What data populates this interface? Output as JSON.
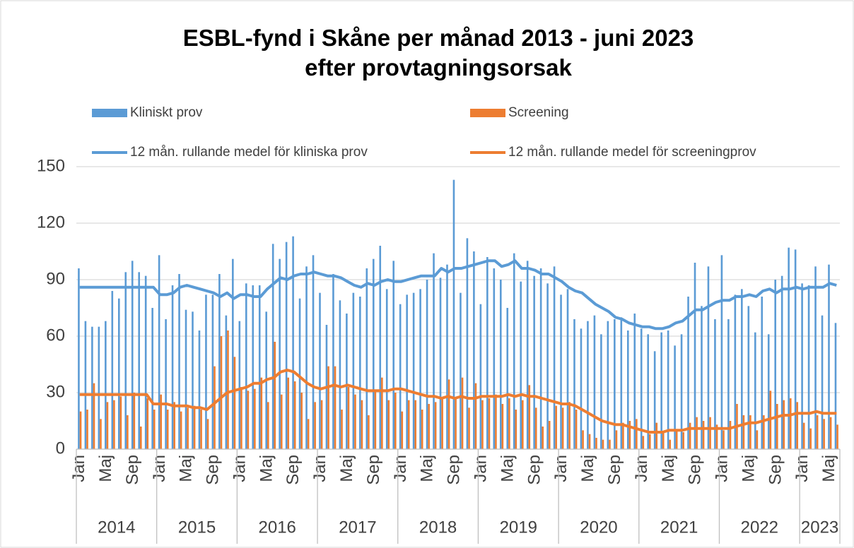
{
  "chart_data": {
    "type": "bar_line",
    "title": "ESBL-fynd i Skåne per månad 2013 - juni 2023 efter provtagningsorsak",
    "categories": [
      "Jan",
      null,
      null,
      null,
      "Maj",
      null,
      null,
      null,
      "Sep",
      null,
      null,
      null,
      "Jan",
      null,
      null,
      null,
      "Maj",
      null,
      null,
      null,
      "Sep",
      null,
      null,
      null,
      "Jan",
      null,
      null,
      null,
      "Maj",
      null,
      null,
      null,
      "Sep",
      null,
      null,
      null,
      "Jan",
      null,
      null,
      null,
      "Maj",
      null,
      null,
      null,
      "Sep",
      null,
      null,
      null,
      "Jan",
      null,
      null,
      null,
      "Maj",
      null,
      null,
      null,
      "Sep",
      null,
      null,
      null,
      "Jan",
      null,
      null,
      null,
      "Maj",
      null,
      null,
      null,
      "Sep",
      null,
      null,
      null,
      "Jan",
      null,
      null,
      null,
      "Maj",
      null,
      null,
      null,
      "Sep",
      null,
      null,
      null,
      "Jan",
      null,
      null,
      null,
      "Maj",
      null,
      null,
      null,
      "Sep",
      null,
      null,
      null,
      "Jan",
      null,
      null,
      null,
      "Maj",
      null,
      null,
      null,
      "Sep",
      null,
      null,
      null,
      "Jan",
      null,
      null,
      null,
      "Maj",
      null
    ],
    "years": [
      "2014",
      "2015",
      "2016",
      "2017",
      "2018",
      "2019",
      "2020",
      "2021",
      "2022",
      "2023"
    ],
    "series": [
      {
        "name": "Kliniskt prov",
        "kind": "bar",
        "color": "#5b9bd5",
        "values": [
          96,
          68,
          65,
          65,
          68,
          84,
          80,
          94,
          100,
          94,
          92,
          75,
          103,
          69,
          87,
          93,
          74,
          73,
          63,
          82,
          82,
          93,
          71,
          101,
          68,
          88,
          87,
          87,
          73,
          109,
          101,
          110,
          113,
          80,
          97,
          103,
          83,
          66,
          93,
          79,
          72,
          83,
          81,
          96,
          101,
          108,
          85,
          100,
          77,
          82,
          83,
          85,
          90,
          104,
          91,
          98,
          143,
          83,
          112,
          105,
          77,
          102,
          96,
          90,
          75,
          104,
          89,
          100,
          92,
          96,
          88,
          97,
          82,
          85,
          69,
          64,
          68,
          71,
          61,
          68,
          69,
          70,
          63,
          72,
          64,
          61,
          52,
          62,
          63,
          55,
          61,
          81,
          99,
          76,
          97,
          69,
          103,
          69,
          82,
          85,
          76,
          62,
          81,
          61,
          90,
          92,
          107,
          106,
          88,
          87,
          97,
          71,
          98,
          67
        ]
      },
      {
        "name": "Screening",
        "kind": "bar",
        "color": "#ed7d31",
        "values": [
          20,
          21,
          35,
          16,
          25,
          26,
          28,
          18,
          30,
          12,
          27,
          21,
          29,
          21,
          25,
          20,
          22,
          23,
          21,
          16,
          44,
          60,
          63,
          49,
          33,
          31,
          32,
          38,
          25,
          57,
          29,
          38,
          36,
          30,
          16,
          25,
          26,
          44,
          44,
          21,
          33,
          29,
          26,
          18,
          31,
          38,
          26,
          30,
          20,
          26,
          26,
          21,
          24,
          25,
          27,
          37,
          27,
          38,
          22,
          35,
          26,
          27,
          29,
          24,
          27,
          21,
          26,
          34,
          22,
          12,
          15,
          23,
          22,
          25,
          21,
          10,
          8,
          6,
          5,
          5,
          10,
          14,
          15,
          16,
          7,
          8,
          14,
          9,
          5,
          10,
          9,
          14,
          17,
          15,
          17,
          13,
          10,
          15,
          24,
          18,
          18,
          10,
          18,
          31,
          24,
          26,
          27,
          25,
          14,
          11,
          18,
          16,
          17,
          13
        ]
      },
      {
        "name": "12 mån. rullande medel för kliniska prov",
        "kind": "line",
        "color": "#5b9bd5",
        "values": [
          86,
          86,
          86,
          86,
          86,
          86,
          86,
          86,
          86,
          86,
          86,
          86,
          82,
          82,
          83,
          86,
          87,
          86,
          85,
          84,
          83,
          81,
          83,
          80,
          82,
          82,
          81,
          81,
          85,
          88,
          91,
          90,
          92,
          93,
          93,
          94,
          93,
          92,
          92,
          91,
          89,
          87,
          86,
          88,
          87,
          89,
          90,
          89,
          89,
          90,
          91,
          92,
          92,
          92,
          96,
          94,
          96,
          96,
          97,
          98,
          99,
          100,
          100,
          97,
          98,
          100,
          96,
          96,
          95,
          93,
          93,
          91,
          89,
          86,
          84,
          83,
          80,
          77,
          75,
          73,
          70,
          69,
          67,
          66,
          65,
          65,
          64,
          64,
          65,
          67,
          68,
          71,
          74,
          74,
          76,
          78,
          79,
          79,
          81,
          81,
          82,
          81,
          84,
          85,
          83,
          85,
          85,
          86,
          85,
          86,
          86,
          86,
          88,
          87
        ]
      },
      {
        "name": "12 mån. rullande medel för screeningprov",
        "kind": "line",
        "color": "#ed7d31",
        "values": [
          29,
          29,
          29,
          29,
          29,
          29,
          29,
          29,
          29,
          29,
          29,
          24,
          24,
          24,
          23,
          23,
          23,
          22,
          22,
          21,
          24,
          27,
          30,
          31,
          32,
          33,
          35,
          35,
          37,
          38,
          41,
          42,
          41,
          38,
          35,
          33,
          32,
          33,
          34,
          33,
          34,
          33,
          32,
          31,
          31,
          31,
          31,
          32,
          32,
          31,
          30,
          29,
          28,
          28,
          27,
          28,
          27,
          28,
          27,
          27,
          28,
          28,
          28,
          28,
          29,
          28,
          29,
          28,
          28,
          27,
          26,
          25,
          24,
          24,
          23,
          21,
          19,
          17,
          15,
          14,
          13,
          13,
          12,
          11,
          10,
          9,
          9,
          9,
          10,
          10,
          10,
          11,
          11,
          11,
          11,
          11,
          11,
          11,
          12,
          13,
          14,
          14,
          15,
          16,
          17,
          18,
          18,
          19,
          19,
          19,
          20,
          19,
          19,
          19
        ]
      }
    ],
    "ylim": [
      0,
      150
    ],
    "yticks": [
      0,
      30,
      60,
      90,
      120,
      150
    ],
    "grid": true
  }
}
